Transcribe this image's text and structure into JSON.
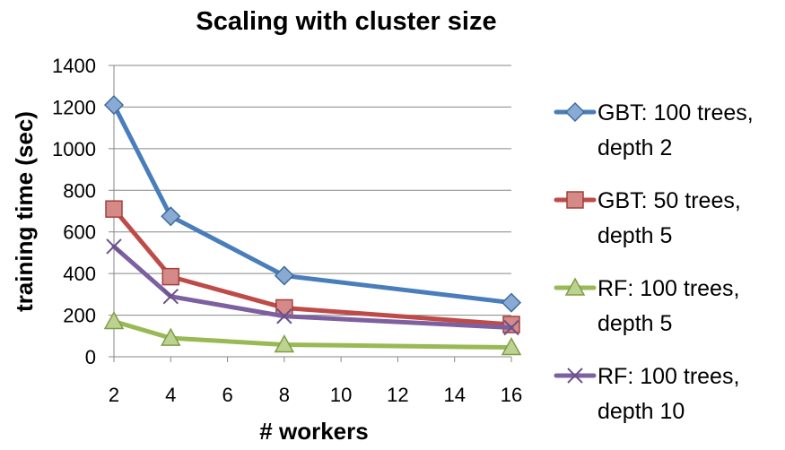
{
  "chart_data": {
    "type": "line",
    "title": "Scaling with cluster size",
    "xlabel": "# workers",
    "ylabel": "training time (sec)",
    "x": [
      2,
      4,
      8,
      16
    ],
    "xlim": [
      2,
      16
    ],
    "ylim": [
      0,
      1400
    ],
    "xticks": [
      2,
      4,
      6,
      8,
      10,
      12,
      14,
      16
    ],
    "yticks": [
      0,
      200,
      400,
      600,
      800,
      1000,
      1200,
      1400
    ],
    "grid": "horizontal",
    "legend_position": "right",
    "series": [
      {
        "name_lines": [
          "GBT: 100 trees,",
          "depth 2"
        ],
        "values": [
          1210,
          675,
          390,
          260
        ],
        "color": "#4a7ebb",
        "marker": "diamond"
      },
      {
        "name_lines": [
          "GBT: 50 trees,",
          "depth 5"
        ],
        "values": [
          710,
          385,
          235,
          155
        ],
        "color": "#be4b48",
        "marker": "square"
      },
      {
        "name_lines": [
          "RF: 100 trees,",
          "depth 5"
        ],
        "values": [
          170,
          90,
          58,
          45
        ],
        "color": "#98b954",
        "marker": "triangle"
      },
      {
        "name_lines": [
          "RF: 100 trees,",
          "depth 10"
        ],
        "values": [
          530,
          290,
          195,
          140
        ],
        "color": "#7d60a0",
        "marker": "x"
      }
    ]
  }
}
